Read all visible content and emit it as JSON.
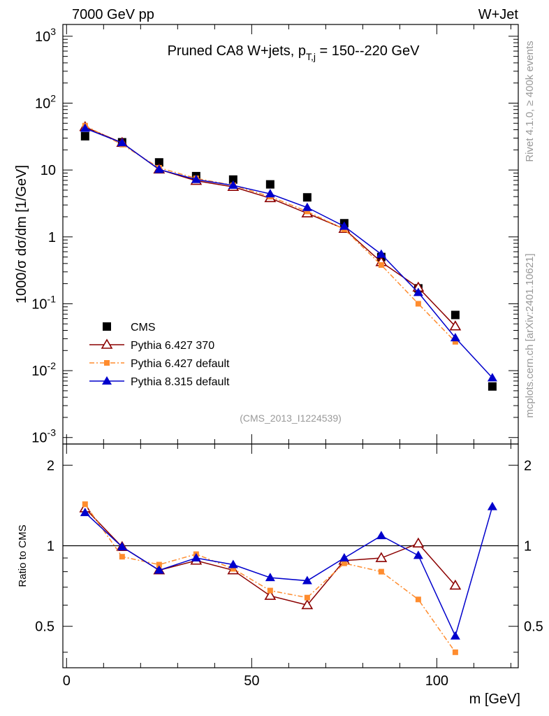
{
  "header": {
    "left": "7000 GeV pp",
    "right": "W+Jet"
  },
  "title_main": "Pruned CA8 W+jets, p",
  "title_sub": "T,j",
  "title_range": " = 150--220 GeV",
  "analysis_id": "(CMS_2013_I1224539)",
  "side_label_rivet": "Rivet 4.1.0, ≥ 400k events",
  "side_label_mcplots": "mcplots.cern.ch [arXiv:2401.10621]",
  "colors": {
    "cms": "#000000",
    "py6_370": "#8b0000",
    "py6_def": "#ff8c2e",
    "py8": "#0000cc"
  },
  "chart_data": [
    {
      "type": "scatter",
      "panel": "main",
      "ylabel": "1000/σ  dσ/dm [1/GeV]",
      "yscale": "log",
      "ylim": [
        0.0008,
        1500
      ],
      "xlim": [
        -1,
        122
      ],
      "y_ticks": [
        "10^-3",
        "10^-2",
        "10^-1",
        "1",
        "10",
        "10^2",
        "10^3"
      ],
      "series": [
        {
          "name": "CMS",
          "key": "cms",
          "marker": "square",
          "x": [
            5,
            15,
            25,
            35,
            45,
            55,
            65,
            75,
            85,
            95,
            105,
            115
          ],
          "y": [
            32,
            26,
            13,
            8.1,
            7.2,
            6.1,
            3.9,
            1.6,
            0.5,
            0.17,
            0.068,
            0.0058
          ]
        },
        {
          "name": "Pythia 6.427 370",
          "key": "py6_370",
          "marker": "triangle-open",
          "x": [
            5,
            15,
            25,
            35,
            45,
            55,
            65,
            75,
            85,
            95,
            105
          ],
          "y": [
            44,
            25.5,
            10.2,
            6.9,
            5.6,
            3.8,
            2.25,
            1.32,
            0.42,
            0.175,
            0.046
          ]
        },
        {
          "name": "Pythia 6.427 default",
          "key": "py6_def",
          "marker": "square-small",
          "x": [
            5,
            15,
            25,
            35,
            45,
            55,
            65,
            75,
            85,
            95,
            105
          ],
          "y": [
            46,
            24,
            10.8,
            7.5,
            5.9,
            4.0,
            2.4,
            1.3,
            0.38,
            0.1,
            0.027
          ]
        },
        {
          "name": "Pythia 8.315 default",
          "key": "py8",
          "marker": "triangle",
          "x": [
            5,
            15,
            25,
            35,
            45,
            55,
            65,
            75,
            85,
            95,
            105,
            115
          ],
          "y": [
            42,
            25.5,
            10.2,
            7.2,
            5.9,
            4.4,
            2.75,
            1.44,
            0.55,
            0.147,
            0.031,
            0.0078
          ]
        }
      ]
    },
    {
      "type": "scatter",
      "panel": "ratio",
      "xlabel": "m [GeV]",
      "ylabel": "Ratio to CMS",
      "yscale": "log",
      "ylim": [
        0.35,
        2.4
      ],
      "xlim": [
        -1,
        122
      ],
      "x_ticks": [
        "0",
        "50",
        "100"
      ],
      "y_ticks": [
        "0.5",
        "1",
        "2"
      ],
      "series": [
        {
          "name": "Pythia 6.427 370",
          "key": "py6_370",
          "x": [
            5,
            15,
            25,
            35,
            45,
            55,
            65,
            75,
            85,
            95,
            105
          ],
          "y": [
            1.38,
            0.99,
            0.81,
            0.88,
            0.81,
            0.65,
            0.6,
            0.88,
            0.9,
            1.02,
            0.71
          ]
        },
        {
          "name": "Pythia 6.427 default",
          "key": "py6_def",
          "x": [
            5,
            15,
            25,
            35,
            45,
            55,
            65,
            75,
            85,
            95,
            105
          ],
          "y": [
            1.43,
            0.91,
            0.85,
            0.93,
            0.82,
            0.68,
            0.64,
            0.86,
            0.8,
            0.63,
            0.4
          ]
        },
        {
          "name": "Pythia 8.315 default",
          "key": "py8",
          "x": [
            5,
            15,
            25,
            35,
            45,
            55,
            65,
            75,
            85,
            95,
            105,
            115
          ],
          "y": [
            1.33,
            0.99,
            0.81,
            0.9,
            0.85,
            0.76,
            0.74,
            0.9,
            1.09,
            0.92,
            0.46,
            1.4
          ]
        }
      ]
    }
  ]
}
